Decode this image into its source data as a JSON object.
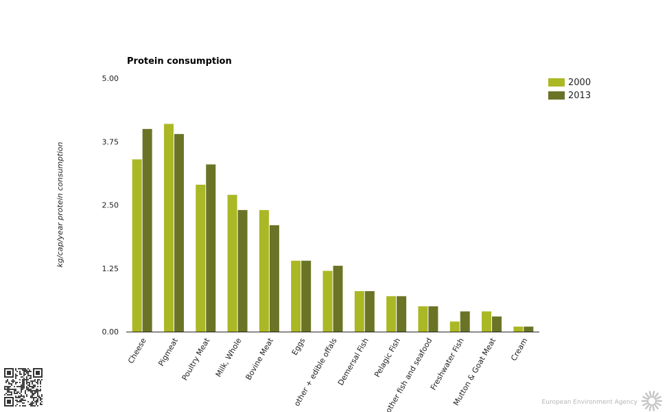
{
  "chart_data": {
    "type": "bar",
    "title": "Protein consumption",
    "ylabel": "kg/cap/year protein consumption",
    "xlabel": "",
    "ylim": [
      0,
      5
    ],
    "yticks": [
      "0.00",
      "1.25",
      "2.50",
      "3.75",
      "5.00"
    ],
    "ytick_values": [
      0,
      1.25,
      2.5,
      3.75,
      5
    ],
    "grid": false,
    "legend_position": "top-right",
    "categories": [
      "Cheese",
      "Pigmeat",
      "Poultry Meat",
      "Milk, Whole",
      "Bovine Meat",
      "Eggs",
      "other + edible offals",
      "Demersal Fish",
      "Pelagic Fish",
      "other fish and seafood",
      "Freshwater Fish",
      "Mutton & Goat Meat",
      "Cream"
    ],
    "series": [
      {
        "name": "2000",
        "color": "#aab825",
        "values": [
          3.4,
          4.1,
          2.9,
          2.7,
          2.4,
          1.4,
          1.2,
          0.8,
          0.7,
          0.5,
          0.2,
          0.4,
          0.1
        ]
      },
      {
        "name": "2013",
        "color": "#6b7426",
        "values": [
          4.0,
          3.9,
          3.3,
          2.4,
          2.1,
          1.4,
          1.3,
          0.8,
          0.7,
          0.5,
          0.4,
          0.3,
          0.1
        ]
      }
    ]
  },
  "credit": {
    "text": "European Environment Agency",
    "logo_icon": "eea-sun-icon",
    "qr_icon": "qr-code-icon"
  }
}
